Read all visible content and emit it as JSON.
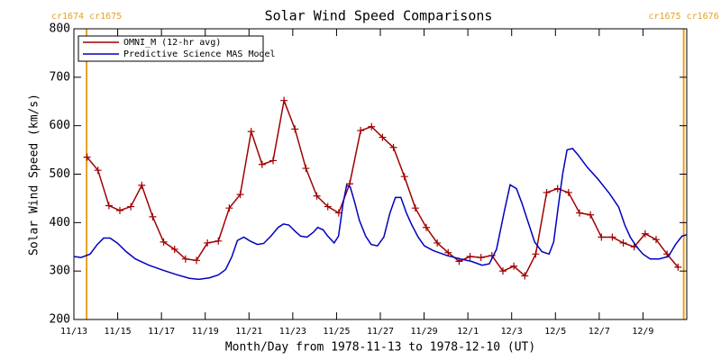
{
  "chart_data": {
    "type": "line",
    "title": "Solar Wind Speed Comparisons",
    "x_label": "Month/Day from 1978-11-13 to 1978-12-10 (UT)",
    "y_label": "Solar Wind Speed (km/s)",
    "xlim": [
      0,
      28
    ],
    "xticks": [
      {
        "value": 0,
        "label": "11/13"
      },
      {
        "value": 2,
        "label": "11/15"
      },
      {
        "value": 4,
        "label": "11/17"
      },
      {
        "value": 6,
        "label": "11/19"
      },
      {
        "value": 8,
        "label": "11/21"
      },
      {
        "value": 10,
        "label": "11/23"
      },
      {
        "value": 12,
        "label": "11/25"
      },
      {
        "value": 14,
        "label": "11/27"
      },
      {
        "value": 16,
        "label": "11/29"
      },
      {
        "value": 18,
        "label": "12/1"
      },
      {
        "value": 20,
        "label": "12/3"
      },
      {
        "value": 22,
        "label": "12/5"
      },
      {
        "value": 24,
        "label": "12/7"
      },
      {
        "value": 26,
        "label": "12/9"
      }
    ],
    "ylim": [
      200,
      800
    ],
    "yticks": [
      200,
      300,
      400,
      500,
      600,
      700,
      800
    ],
    "legend": "upper left",
    "annotations": [
      {
        "text": "cr1674 cr1675",
        "x": 0.58,
        "color": "#e8a020"
      },
      {
        "text": "cr1675 cr1676",
        "x": 27.86,
        "color": "#e8a020"
      }
    ],
    "series": [
      {
        "name": "OMNI_M (12-hr avg)",
        "color": "#a00000",
        "marker": "+",
        "x": [
          0.6,
          1.1,
          1.6,
          2.1,
          2.6,
          3.1,
          3.6,
          4.1,
          4.6,
          5.1,
          5.6,
          6.1,
          6.6,
          7.1,
          7.6,
          8.1,
          8.6,
          9.1,
          9.6,
          10.1,
          10.6,
          11.1,
          11.6,
          12.1,
          12.6,
          13.1,
          13.6,
          14.1,
          14.6,
          15.1,
          15.6,
          16.1,
          16.6,
          17.1,
          17.6,
          18.1,
          18.6,
          19.1,
          19.6,
          20.1,
          20.6,
          21.1,
          21.6,
          22.1,
          22.6,
          23.1,
          23.6,
          24.1,
          24.6,
          25.1,
          25.6,
          26.1,
          26.6,
          27.1,
          27.6
        ],
        "values": [
          535,
          508,
          435,
          425,
          433,
          477,
          412,
          360,
          345,
          325,
          322,
          358,
          362,
          430,
          458,
          588,
          520,
          528,
          652,
          593,
          512,
          455,
          433,
          420,
          480,
          590,
          598,
          576,
          555,
          495,
          430,
          390,
          358,
          338,
          320,
          330,
          328,
          332,
          300,
          310,
          290,
          335,
          462,
          470,
          462,
          420,
          416,
          370,
          370,
          358,
          350,
          377,
          365,
          335,
          308
        ]
      },
      {
        "name": "Predictive Science MAS Model",
        "color": "#0000c0",
        "x": [
          0,
          0.33,
          0.74,
          1.07,
          1.36,
          1.65,
          1.98,
          2.39,
          2.81,
          3.43,
          4.05,
          4.66,
          5.28,
          5.7,
          6.19,
          6.6,
          6.93,
          7.22,
          7.47,
          7.76,
          8.05,
          8.38,
          8.67,
          9,
          9.33,
          9.57,
          9.82,
          10.11,
          10.36,
          10.65,
          10.94,
          11.14,
          11.39,
          11.6,
          11.89,
          12.09,
          12.3,
          12.46,
          12.63,
          12.84,
          13.04,
          13.33,
          13.58,
          13.87,
          14.16,
          14.44,
          14.69,
          14.94,
          15.19,
          15.44,
          15.73,
          16.01,
          16.43,
          17.05,
          17.66,
          18.16,
          18.65,
          18.98,
          19.31,
          19.65,
          19.93,
          20.22,
          20.47,
          20.76,
          21.05,
          21.38,
          21.71,
          21.92,
          22.12,
          22.33,
          22.53,
          22.78,
          23.03,
          23.44,
          23.94,
          24.47,
          24.89,
          25.17,
          25.42,
          25.71,
          26,
          26.33,
          26.74,
          27.16,
          27.49,
          27.78,
          28
        ],
        "values": [
          330,
          328,
          335,
          355,
          368,
          368,
          358,
          340,
          325,
          312,
          302,
          293,
          285,
          283,
          286,
          292,
          303,
          330,
          363,
          370,
          362,
          355,
          357,
          372,
          390,
          397,
          395,
          382,
          372,
          370,
          380,
          390,
          385,
          372,
          358,
          372,
          440,
          477,
          473,
          440,
          405,
          372,
          355,
          352,
          370,
          420,
          452,
          452,
          420,
          395,
          370,
          352,
          342,
          332,
          325,
          320,
          312,
          315,
          345,
          420,
          478,
          470,
          440,
          400,
          360,
          340,
          335,
          360,
          430,
          500,
          550,
          553,
          540,
          515,
          490,
          460,
          432,
          395,
          370,
          350,
          335,
          325,
          325,
          330,
          355,
          372,
          375
        ]
      }
    ]
  }
}
